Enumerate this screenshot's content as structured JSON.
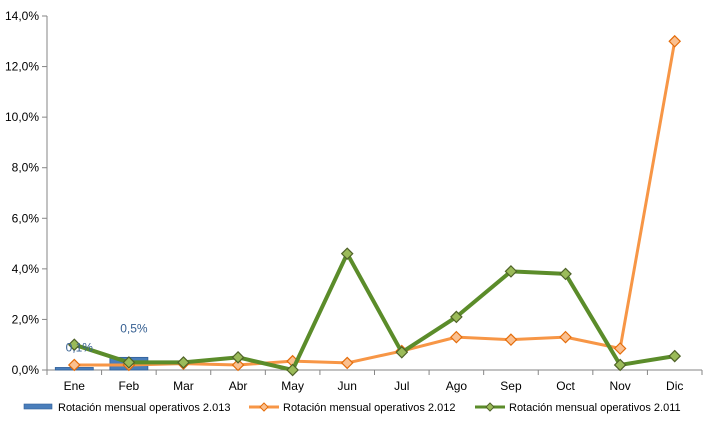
{
  "chart_data": {
    "type": "bar+line",
    "categories": [
      "Ene",
      "Feb",
      "Mar",
      "Abr",
      "May",
      "Jun",
      "Jul",
      "Ago",
      "Sep",
      "Oct",
      "Nov",
      "Dic"
    ],
    "ylim": [
      0,
      14
    ],
    "yticks": [
      "0,0%",
      "2,0%",
      "4,0%",
      "6,0%",
      "8,0%",
      "10,0%",
      "12,0%",
      "14,0%"
    ],
    "grid": false,
    "legend_position": "bottom",
    "series": [
      {
        "name": "Rotación mensual operativos 2.013",
        "kind": "bar",
        "color": "#4a7ebb",
        "values": [
          0.1,
          0.5,
          null,
          null,
          null,
          null,
          null,
          null,
          null,
          null,
          null,
          null
        ],
        "data_labels": [
          "0,1%",
          "0,5%",
          "",
          "",
          "",
          "",
          "",
          "",
          "",
          "",
          "",
          ""
        ]
      },
      {
        "name": "Rotación mensual operativos 2.012",
        "kind": "line",
        "color": "#f79646",
        "values": [
          0.2,
          0.2,
          0.25,
          0.2,
          0.35,
          0.28,
          0.75,
          1.3,
          1.2,
          1.3,
          0.85,
          13.0
        ]
      },
      {
        "name": "Rotación mensual operativos 2.011",
        "kind": "line",
        "color": "#5b8c2a",
        "values": [
          1.0,
          0.3,
          0.3,
          0.5,
          0.0,
          4.6,
          0.7,
          2.1,
          3.9,
          3.8,
          0.2,
          0.55
        ]
      }
    ]
  }
}
